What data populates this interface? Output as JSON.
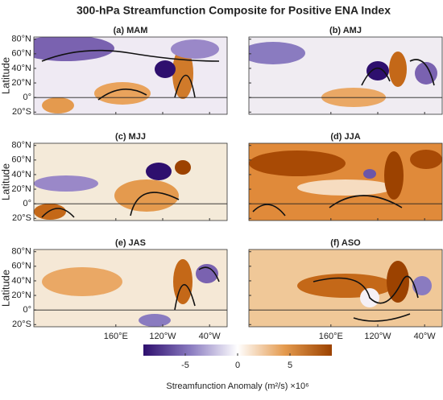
{
  "title": "300-hPa Streamfunction Composite for Positive ENA Index",
  "y_axis_label": "Latitude",
  "panels": [
    {
      "title": "(a) MAM"
    },
    {
      "title": "(b) AMJ"
    },
    {
      "title": "(c) MJJ"
    },
    {
      "title": "(d) JJA"
    },
    {
      "title": "(e) JAS"
    },
    {
      "title": "(f) ASO"
    }
  ],
  "ylim": [
    -23,
    83
  ],
  "lat_ticks": [
    {
      "value": 80,
      "label": "80°N"
    },
    {
      "value": 60,
      "label": "60°N"
    },
    {
      "value": 40,
      "label": "40°N"
    },
    {
      "value": 20,
      "label": "20°N"
    },
    {
      "value": 0,
      "label": "0°"
    },
    {
      "value": -20,
      "label": "20°S"
    }
  ],
  "xlim": [
    20,
    350
  ],
  "lon_ticks": [
    {
      "value": 160,
      "label": "160°E"
    },
    {
      "value": 240,
      "label": "120°W"
    },
    {
      "value": 320,
      "label": "40°W"
    }
  ],
  "colorbar": {
    "label": "Streamfunction Anomaly (m²/s) ×10⁶",
    "clim": [
      -9,
      9
    ],
    "ticks": [
      -5,
      0,
      5
    ],
    "colors": [
      "#2e0f6e",
      "#8a7bc0",
      "#ffffff",
      "#e49a4e",
      "#9c4200"
    ]
  }
}
